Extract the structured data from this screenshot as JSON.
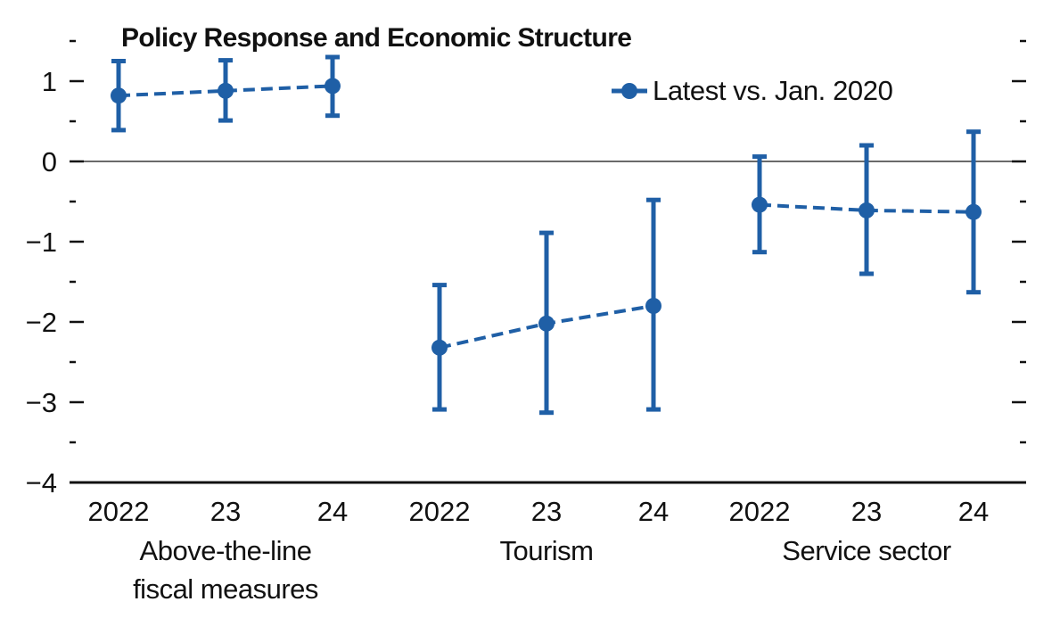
{
  "chart_data": {
    "type": "scatter",
    "title": "Policy Response and Economic Structure",
    "xlabel": "",
    "ylabel": "",
    "ylim": [
      -4,
      1.5
    ],
    "yticks": [
      1,
      0,
      -1,
      -2,
      -3,
      -4
    ],
    "ytick_labels": [
      "1",
      "0",
      "−1",
      "−2",
      "−3",
      "−4"
    ],
    "zero_line": true,
    "grid": false,
    "legend_position": "top-right",
    "colors": {
      "series": "#1f5fa6"
    },
    "groups": [
      {
        "label_lines": [
          "Above-the-line",
          "fiscal measures"
        ],
        "categories": [
          "2022",
          "23",
          "24"
        ]
      },
      {
        "label_lines": [
          "Tourism"
        ],
        "categories": [
          "2022",
          "23",
          "24"
        ]
      },
      {
        "label_lines": [
          "Service sector"
        ],
        "categories": [
          "2022",
          "23",
          "24"
        ]
      }
    ],
    "series": [
      {
        "name": "Latest vs. Jan. 2020",
        "values": [
          [
            0.82,
            0.88,
            0.94
          ],
          [
            -2.32,
            -2.02,
            -1.8
          ],
          [
            -0.54,
            -0.61,
            -0.63
          ]
        ],
        "lower": [
          [
            0.39,
            0.51,
            0.57
          ],
          [
            -3.09,
            -3.13,
            -3.09
          ],
          [
            -1.13,
            -1.4,
            -1.63
          ]
        ],
        "upper": [
          [
            1.25,
            1.26,
            1.3
          ],
          [
            -1.54,
            -0.89,
            -0.48
          ],
          [
            0.06,
            0.2,
            0.37
          ]
        ]
      }
    ]
  }
}
